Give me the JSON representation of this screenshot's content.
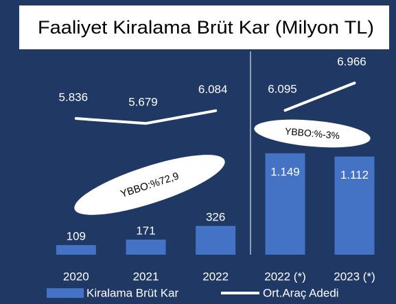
{
  "chart_data": [
    {
      "type": "bar",
      "title": "Faaliyet Kiralama Brüt Kar (Milyon TL)",
      "categories": [
        "2020",
        "2021",
        "2022"
      ],
      "series": [
        {
          "name": "Kiralama Brüt Kar",
          "color": "#4472c4",
          "values": [
            109,
            171,
            326
          ],
          "value_labels": [
            "109",
            "171",
            "326"
          ]
        },
        {
          "name": "Ort.Araç Adedi",
          "type": "line",
          "axis": "y2",
          "color": "#ffffff",
          "values": [
            5836,
            5679,
            6084
          ],
          "value_labels": [
            "5.836",
            "5.679",
            "6.084"
          ]
        }
      ],
      "ylim": [
        0,
        2420
      ],
      "y2lim": [
        1500,
        8300
      ],
      "annotations": [
        "YBBO:%72,9"
      ],
      "legend": "bottom"
    },
    {
      "type": "bar",
      "categories": [
        "2022 (*)",
        "2023 (*)"
      ],
      "series": [
        {
          "name": "Kiralama Brüt Kar",
          "color": "#4472c4",
          "values": [
            1149,
            1112
          ],
          "value_labels": [
            "1.149",
            "1.112"
          ]
        },
        {
          "name": "Ort.Araç Adedi",
          "type": "line",
          "axis": "y2",
          "color": "#ffffff",
          "values": [
            6095,
            6966
          ],
          "value_labels": [
            "6.095",
            "6.966"
          ]
        }
      ],
      "ylim": [
        0,
        2420
      ],
      "y2lim": [
        1500,
        8300
      ],
      "annotations": [
        "YBBO:%-3%"
      ]
    }
  ]
}
